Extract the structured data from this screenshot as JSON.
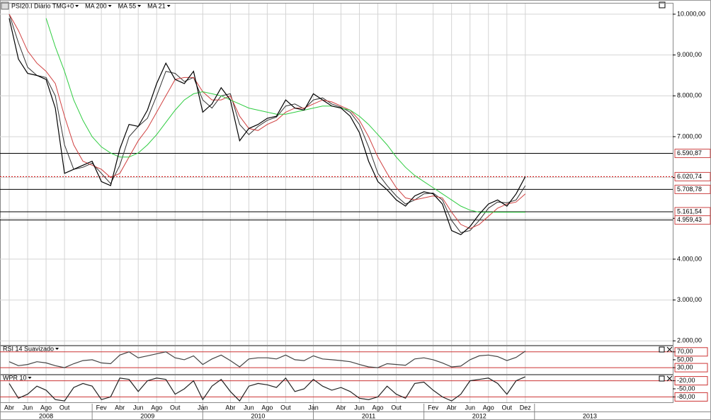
{
  "chart_data": [
    {
      "type": "line",
      "x": [
        "2008-04",
        "2008-05",
        "2008-06",
        "2008-07",
        "2008-08",
        "2008-09",
        "2008-10",
        "2008-11",
        "2008-12",
        "2009-01",
        "2009-02",
        "2009-03",
        "2009-04",
        "2009-05",
        "2009-06",
        "2009-07",
        "2009-08",
        "2009-09",
        "2009-10",
        "2009-11",
        "2009-12",
        "2010-01",
        "2010-02",
        "2010-03",
        "2010-04",
        "2010-05",
        "2010-06",
        "2010-07",
        "2010-08",
        "2010-09",
        "2010-10",
        "2010-11",
        "2010-12",
        "2011-01",
        "2011-02",
        "2011-03",
        "2011-04",
        "2011-05",
        "2011-06",
        "2011-07",
        "2011-08",
        "2011-09",
        "2011-10",
        "2011-11",
        "2011-12",
        "2012-01",
        "2012-02",
        "2012-03",
        "2012-04",
        "2012-05",
        "2012-06",
        "2012-07",
        "2012-08",
        "2012-09",
        "2012-10",
        "2012-11",
        "2012-12"
      ],
      "xlim": [
        "2008-03",
        "2014-04"
      ],
      "ylim": [
        1900,
        10260
      ],
      "yticks": [
        {
          "value": 2000,
          "label": "2.000,00"
        },
        {
          "value": 3000,
          "label": "3.000,00"
        },
        {
          "value": 4000,
          "label": "4.000,00"
        },
        {
          "value": 5000,
          "label": "5.000,00"
        },
        {
          "value": 6000,
          "label": "6.000,00"
        },
        {
          "value": 7000,
          "label": "7.000,00"
        },
        {
          "value": 8000,
          "label": "8.000,00"
        },
        {
          "value": 9000,
          "label": "9.000,00"
        },
        {
          "value": 10000,
          "label": "10.000,00"
        }
      ],
      "grid": true,
      "series": [
        {
          "name": "PSI20.I Diário TMG+0",
          "color": "#000000",
          "values": [
            9900,
            8900,
            8550,
            8500,
            8400,
            7700,
            6100,
            6200,
            6300,
            6400,
            5900,
            5800,
            6700,
            7300,
            7250,
            7650,
            8300,
            8800,
            8400,
            8300,
            8600,
            7600,
            7800,
            8200,
            7900,
            6900,
            7200,
            7300,
            7450,
            7500,
            7900,
            7700,
            7650,
            8050,
            7900,
            7750,
            7700,
            7500,
            7100,
            6400,
            5900,
            5700,
            5450,
            5300,
            5550,
            5650,
            5600,
            5350,
            4700,
            4600,
            4800,
            5100,
            5350,
            5450,
            5300,
            5600,
            6021
          ]
        },
        {
          "name": "MA 200",
          "color": "#2ecc40",
          "values": [
            null,
            null,
            null,
            null,
            9900,
            9200,
            8600,
            7900,
            7400,
            7000,
            6750,
            6600,
            6500,
            6500,
            6600,
            6800,
            7050,
            7350,
            7650,
            7900,
            8050,
            8100,
            8050,
            8000,
            7900,
            7800,
            7700,
            7650,
            7600,
            7550,
            7550,
            7600,
            7650,
            7700,
            7750,
            7750,
            7700,
            7650,
            7500,
            7300,
            7050,
            6800,
            6500,
            6250,
            6050,
            5900,
            5750,
            5600,
            5450,
            5300,
            5200,
            5150,
            5150,
            5150,
            5150,
            5150,
            5150
          ]
        },
        {
          "name": "MA 55",
          "color": "#d04040",
          "values": [
            10000,
            9600,
            9100,
            8800,
            8600,
            8300,
            7500,
            6800,
            6400,
            6300,
            6200,
            6000,
            6100,
            6500,
            6900,
            7200,
            7600,
            8000,
            8400,
            8450,
            8450,
            8100,
            7900,
            7900,
            8000,
            7500,
            7200,
            7150,
            7300,
            7400,
            7600,
            7700,
            7700,
            7800,
            7900,
            7850,
            7750,
            7650,
            7400,
            7000,
            6500,
            6100,
            5750,
            5500,
            5450,
            5500,
            5550,
            5500,
            5150,
            4850,
            4750,
            4850,
            5050,
            5250,
            5350,
            5400,
            5600
          ]
        },
        {
          "name": "MA 21",
          "color": "#333333",
          "values": [
            10000,
            9300,
            8700,
            8500,
            8450,
            8000,
            6800,
            6200,
            6250,
            6350,
            6100,
            5850,
            6300,
            7000,
            7250,
            7450,
            8000,
            8600,
            8550,
            8350,
            8450,
            7900,
            7700,
            8000,
            8050,
            7300,
            7050,
            7250,
            7400,
            7480,
            7750,
            7800,
            7680,
            7900,
            7950,
            7800,
            7720,
            7600,
            7300,
            6750,
            6100,
            5800,
            5550,
            5350,
            5450,
            5600,
            5620,
            5450,
            4950,
            4650,
            4700,
            4950,
            5250,
            5400,
            5380,
            5450,
            5800
          ]
        }
      ],
      "levels": [
        {
          "value": 6590.87,
          "label": "6.590,87",
          "color": "#000000",
          "dotted": false
        },
        {
          "value": 6020.74,
          "label": "6.020,74",
          "color": "#cc0000",
          "dotted": true
        },
        {
          "value": 5708.78,
          "label": "5.708,78",
          "color": "#000000",
          "dotted": false
        },
        {
          "value": 5161.54,
          "label": "5.161,54",
          "color": "#000000",
          "dotted": false
        },
        {
          "value": 4959.43,
          "label": "4.959,43",
          "color": "#000000",
          "dotted": false
        }
      ]
    },
    {
      "type": "line",
      "x": [
        "2008-04",
        "2008-05",
        "2008-06",
        "2008-07",
        "2008-08",
        "2008-09",
        "2008-10",
        "2008-11",
        "2008-12",
        "2009-01",
        "2009-02",
        "2009-03",
        "2009-04",
        "2009-05",
        "2009-06",
        "2009-07",
        "2009-08",
        "2009-09",
        "2009-10",
        "2009-11",
        "2009-12",
        "2010-01",
        "2010-02",
        "2010-03",
        "2010-04",
        "2010-05",
        "2010-06",
        "2010-07",
        "2010-08",
        "2010-09",
        "2010-10",
        "2010-11",
        "2010-12",
        "2011-01",
        "2011-02",
        "2011-03",
        "2011-04",
        "2011-05",
        "2011-06",
        "2011-07",
        "2011-08",
        "2011-09",
        "2011-10",
        "2011-11",
        "2011-12",
        "2012-01",
        "2012-02",
        "2012-03",
        "2012-04",
        "2012-05",
        "2012-06",
        "2012-07",
        "2012-08",
        "2012-09",
        "2012-10",
        "2012-11",
        "2012-12"
      ],
      "xlim": [
        "2008-03",
        "2014-04"
      ],
      "ylim": [
        14,
        84
      ],
      "yticks": [
        {
          "value": 70,
          "label": "70,00"
        },
        {
          "value": 50,
          "label": "50,00"
        },
        {
          "value": 30,
          "label": "30,00"
        }
      ],
      "hlines": [
        70,
        30
      ],
      "hline_color": "#cc3333",
      "series": [
        {
          "name": "RSI 14 Suavizado",
          "color": "#444444",
          "values": [
            45,
            35,
            38,
            45,
            42,
            35,
            30,
            40,
            48,
            50,
            42,
            40,
            62,
            70,
            55,
            60,
            65,
            70,
            55,
            50,
            60,
            38,
            52,
            62,
            48,
            32,
            52,
            55,
            55,
            52,
            62,
            50,
            48,
            60,
            52,
            50,
            48,
            45,
            38,
            32,
            30,
            40,
            38,
            36,
            52,
            55,
            50,
            42,
            32,
            34,
            50,
            60,
            62,
            58,
            48,
            56,
            72
          ]
        }
      ]
    },
    {
      "type": "line",
      "x": [
        "2008-04",
        "2008-05",
        "2008-06",
        "2008-07",
        "2008-08",
        "2008-09",
        "2008-10",
        "2008-11",
        "2008-12",
        "2009-01",
        "2009-02",
        "2009-03",
        "2009-04",
        "2009-05",
        "2009-06",
        "2009-07",
        "2009-08",
        "2009-09",
        "2009-10",
        "2009-11",
        "2009-12",
        "2010-01",
        "2010-02",
        "2010-03",
        "2010-04",
        "2010-05",
        "2010-06",
        "2010-07",
        "2010-08",
        "2010-09",
        "2010-10",
        "2010-11",
        "2010-12",
        "2011-01",
        "2011-02",
        "2011-03",
        "2011-04",
        "2011-05",
        "2011-06",
        "2011-07",
        "2011-08",
        "2011-09",
        "2011-10",
        "2011-11",
        "2011-12",
        "2012-01",
        "2012-02",
        "2012-03",
        "2012-04",
        "2012-05",
        "2012-06",
        "2012-07",
        "2012-08",
        "2012-09",
        "2012-10",
        "2012-11",
        "2012-12"
      ],
      "xlim": [
        "2008-03",
        "2014-04"
      ],
      "ylim": [
        -100,
        0
      ],
      "yticks": [
        {
          "value": -20,
          "label": "-20,00"
        },
        {
          "value": -50,
          "label": "-50,00"
        },
        {
          "value": -80,
          "label": "-80,00"
        }
      ],
      "hlines": [
        -20,
        -80
      ],
      "hline_color": "#cc3333",
      "series": [
        {
          "name": "WPR 10",
          "color": "#222222",
          "values": [
            -30,
            -85,
            -70,
            -40,
            -55,
            -90,
            -95,
            -45,
            -30,
            -40,
            -90,
            -80,
            -10,
            -15,
            -60,
            -20,
            -10,
            -15,
            -70,
            -50,
            -20,
            -90,
            -40,
            -15,
            -60,
            -95,
            -40,
            -30,
            -35,
            -45,
            -10,
            -60,
            -50,
            -15,
            -40,
            -55,
            -45,
            -60,
            -85,
            -90,
            -80,
            -40,
            -70,
            -85,
            -30,
            -25,
            -55,
            -80,
            -95,
            -70,
            -20,
            -15,
            -10,
            -30,
            -70,
            -20,
            -5
          ]
        }
      ],
      "xticks": [
        {
          "value": "2008-04",
          "label": "Abr"
        },
        {
          "value": "2008-06",
          "label": "Jun"
        },
        {
          "value": "2008-08",
          "label": "Ago"
        },
        {
          "value": "2008-10",
          "label": "Out"
        },
        {
          "value": "2009-02",
          "label": "Fev"
        },
        {
          "value": "2009-04",
          "label": "Abr"
        },
        {
          "value": "2009-06",
          "label": "Jun"
        },
        {
          "value": "2009-08",
          "label": "Ago"
        },
        {
          "value": "2009-10",
          "label": "Out"
        },
        {
          "value": "2010-01",
          "label": "Jan"
        },
        {
          "value": "2010-04",
          "label": "Abr"
        },
        {
          "value": "2010-06",
          "label": "Jun"
        },
        {
          "value": "2010-08",
          "label": "Ago"
        },
        {
          "value": "2010-10",
          "label": "Out"
        },
        {
          "value": "2011-01",
          "label": "Jan"
        },
        {
          "value": "2011-04",
          "label": "Abr"
        },
        {
          "value": "2011-06",
          "label": "Jun"
        },
        {
          "value": "2011-08",
          "label": "Ago"
        },
        {
          "value": "2011-10",
          "label": "Out"
        },
        {
          "value": "2012-02",
          "label": "Fev"
        },
        {
          "value": "2012-04",
          "label": "Abr"
        },
        {
          "value": "2012-06",
          "label": "Jun"
        },
        {
          "value": "2012-08",
          "label": "Ago"
        },
        {
          "value": "2012-10",
          "label": "Out"
        },
        {
          "value": "2012-12",
          "label": "Dez"
        }
      ],
      "years": [
        "2008",
        "2009",
        "2010",
        "2011",
        "2012",
        "2013"
      ]
    }
  ]
}
